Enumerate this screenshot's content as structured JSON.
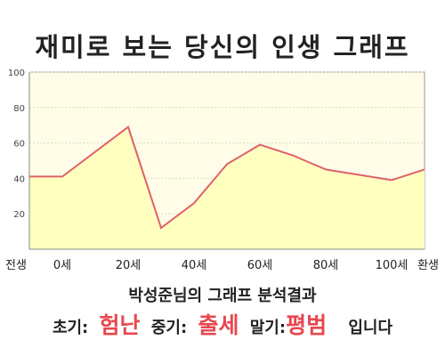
{
  "title": "재미로 보는 당신의 인생 그래프",
  "summary": {
    "heading": "박성준님의 그래프 분석결과",
    "early_label": "초기:",
    "early_value": "험난",
    "middle_label": "중기:",
    "middle_value": "출세",
    "late_label": "말기:",
    "late_value": "평범",
    "suffix": "입니다"
  },
  "colors": {
    "line": "#e0606a",
    "fill": "#ffffc0",
    "plot_bg": "#fffde8",
    "grid": "#d8d8c0",
    "highlight": "#e8474f"
  },
  "chart_data": {
    "type": "area",
    "title": "재미로 보는 당신의 인생 그래프",
    "xlabel": "",
    "ylabel": "",
    "ylim": [
      0,
      100
    ],
    "yticks": [
      20,
      40,
      60,
      80,
      100
    ],
    "x_tick_labels": [
      "전생",
      "0세",
      "20세",
      "40세",
      "60세",
      "80세",
      "100세",
      "환생"
    ],
    "x_tick_positions": [
      -10,
      0,
      20,
      40,
      60,
      80,
      100,
      110
    ],
    "x_range": [
      -10,
      110
    ],
    "grid": true,
    "legend": "none",
    "series": [
      {
        "x": [
          -10,
          0,
          20,
          30,
          35,
          40,
          50,
          60,
          70,
          75,
          80,
          90,
          100,
          110
        ],
        "values": [
          41,
          41,
          69,
          12,
          19,
          26,
          48,
          59,
          53,
          49,
          45,
          42,
          39,
          45
        ]
      }
    ]
  }
}
